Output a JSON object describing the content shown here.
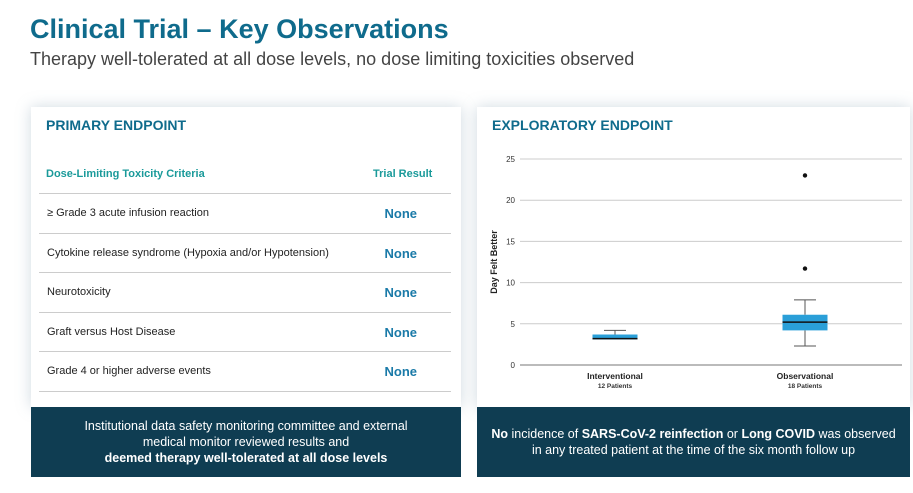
{
  "header": {
    "title": "Clinical Trial – Key Observations",
    "subtitle": "Therapy well-tolerated at all dose levels, no dose limiting toxicities observed"
  },
  "primary": {
    "heading": "PRIMARY ENDPOINT",
    "col_criteria": "Dose-Limiting Toxicity Criteria",
    "col_result": "Trial Result",
    "rows": [
      {
        "criteria": "≥ Grade 3 acute infusion reaction",
        "result": "None"
      },
      {
        "criteria": "Cytokine release syndrome (Hypoxia and/or Hypotension)",
        "result": "None"
      },
      {
        "criteria": "Neurotoxicity",
        "result": "None"
      },
      {
        "criteria": "Graft versus Host Disease",
        "result": "None"
      },
      {
        "criteria": "Grade 4 or higher adverse events",
        "result": "None"
      }
    ],
    "footer": {
      "line1": "Institutional data safety monitoring committee and external",
      "line2": "medical monitor reviewed results and",
      "line3": "deemed therapy well-tolerated at all dose levels"
    }
  },
  "exploratory": {
    "heading": "EXPLORATORY ENDPOINT",
    "footer": {
      "b1": "No",
      "t1": " incidence of ",
      "b2": "SARS-CoV-2 reinfection",
      "t2": " or ",
      "b3": "Long COVID",
      "t3": " was observed",
      "line2": "in any treated patient at the time of the six month follow up"
    }
  },
  "chart_data": {
    "type": "boxplot",
    "ylabel": "Day Felt Better",
    "ylim": [
      0,
      25
    ],
    "yticks": [
      0,
      5,
      10,
      15,
      20,
      25
    ],
    "grid": true,
    "box_color": "#2a9fd8",
    "categories": [
      {
        "label": "Interventional",
        "sublabel": "12 Patients",
        "min": 3.1,
        "q1": 3.1,
        "median": 3.2,
        "q3": 3.7,
        "max": 4.2,
        "outliers": []
      },
      {
        "label": "Observational",
        "sublabel": "18 Patients",
        "min": 2.3,
        "q1": 4.2,
        "median": 5.2,
        "q3": 6.1,
        "max": 7.9,
        "outliers": [
          11.7,
          23
        ]
      }
    ]
  }
}
